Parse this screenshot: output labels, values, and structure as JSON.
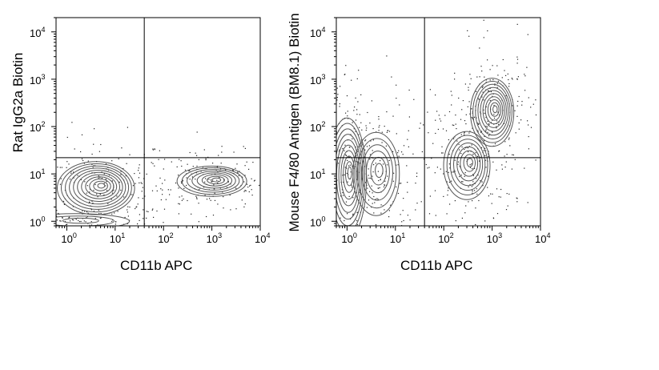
{
  "chart_data": [
    {
      "type": "contour",
      "xlabel": "CD11b APC",
      "ylabel": "Rat IgG2a Biotin",
      "x_scale": "log",
      "y_scale": "log",
      "xlim": [
        0.6,
        10000
      ],
      "ylim": [
        0.8,
        20000
      ],
      "x_ticks": [
        {
          "value": 1,
          "base": "10",
          "exp": "0"
        },
        {
          "value": 10,
          "base": "10",
          "exp": "1"
        },
        {
          "value": 100,
          "base": "10",
          "exp": "2"
        },
        {
          "value": 1000,
          "base": "10",
          "exp": "3"
        },
        {
          "value": 10000,
          "base": "10",
          "exp": "4"
        }
      ],
      "y_ticks": [
        {
          "value": 1,
          "base": "10",
          "exp": "0"
        },
        {
          "value": 10,
          "base": "10",
          "exp": "1"
        },
        {
          "value": 100,
          "base": "10",
          "exp": "2"
        },
        {
          "value": 1000,
          "base": "10",
          "exp": "3"
        },
        {
          "value": 10000,
          "base": "10",
          "exp": "4"
        }
      ],
      "quadrant_gate": {
        "x": 40,
        "y": 22
      },
      "populations": [
        {
          "x": 4,
          "y": 5,
          "spread_x": 0.5,
          "spread_y": 0.35,
          "rings": 11
        },
        {
          "x": 1000,
          "y": 7,
          "spread_x": 0.45,
          "spread_y": 0.2,
          "rings": 8
        },
        {
          "x": 1.5,
          "y": 1,
          "spread_x": 0.7,
          "spread_y": 0.1,
          "rings": 3
        }
      ],
      "grid": false
    },
    {
      "type": "contour",
      "xlabel": "CD11b APC",
      "ylabel": "Mouse F4/80 Antigen (BM8.1) Biotin",
      "x_scale": "log",
      "y_scale": "log",
      "xlim": [
        0.6,
        10000
      ],
      "ylim": [
        0.8,
        20000
      ],
      "x_ticks": [
        {
          "value": 1,
          "base": "10",
          "exp": "0"
        },
        {
          "value": 10,
          "base": "10",
          "exp": "1"
        },
        {
          "value": 100,
          "base": "10",
          "exp": "2"
        },
        {
          "value": 1000,
          "base": "10",
          "exp": "3"
        },
        {
          "value": 10000,
          "base": "10",
          "exp": "4"
        }
      ],
      "y_ticks": [
        {
          "value": 1,
          "base": "10",
          "exp": "0"
        },
        {
          "value": 10,
          "base": "10",
          "exp": "1"
        },
        {
          "value": 100,
          "base": "10",
          "exp": "2"
        },
        {
          "value": 1000,
          "base": "10",
          "exp": "3"
        },
        {
          "value": 10000,
          "base": "10",
          "exp": "4"
        }
      ],
      "quadrant_gate": {
        "x": 40,
        "y": 22
      },
      "populations": [
        {
          "x": 1,
          "y": 8,
          "spread_x": 0.25,
          "spread_y": 0.8,
          "rings": 10
        },
        {
          "x": 4,
          "y": 10,
          "spread_x": 0.3,
          "spread_y": 0.55,
          "rings": 6
        },
        {
          "x": 300,
          "y": 15,
          "spread_x": 0.3,
          "spread_y": 0.45,
          "rings": 8
        },
        {
          "x": 1000,
          "y": 200,
          "spread_x": 0.28,
          "spread_y": 0.45,
          "rings": 10
        }
      ],
      "grid": false
    }
  ]
}
